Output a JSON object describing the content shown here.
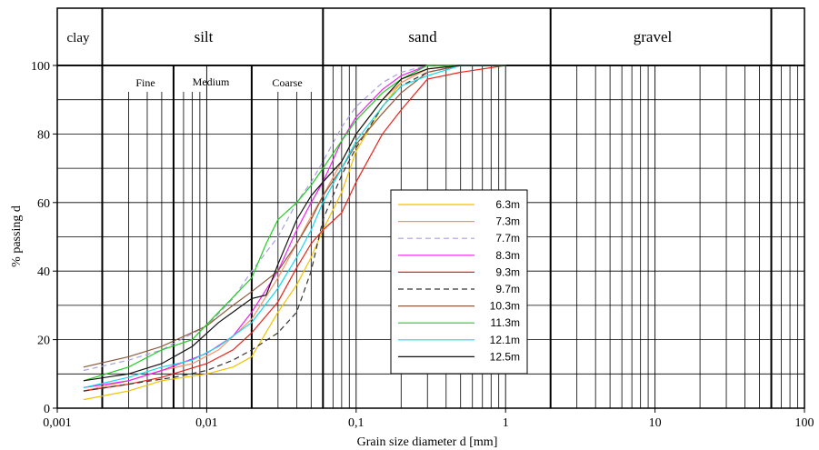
{
  "header": {
    "clay": "clay",
    "silt": "silt",
    "sand": "sand",
    "gravel": "gravel",
    "fine": "Fine",
    "medium": "Medium",
    "coarse": "Coarse"
  },
  "chart_data": {
    "type": "line",
    "title": "",
    "xlabel": "Grain size diameter d [mm]",
    "ylabel": "% passing d",
    "xscale": "log",
    "xlim": [
      0.001,
      100
    ],
    "ylim": [
      0,
      100
    ],
    "x_ticks": [
      "0,001",
      "0,01",
      "0,1",
      "1",
      "10",
      "100"
    ],
    "y_ticks": [
      "0",
      "20",
      "40",
      "60",
      "80",
      "100"
    ],
    "zones": [
      {
        "name": "clay",
        "from": 0.001,
        "to": 0.002
      },
      {
        "name": "silt",
        "from": 0.002,
        "to": 0.06,
        "subzones": [
          {
            "name": "Fine",
            "from": 0.002,
            "to": 0.006
          },
          {
            "name": "Medium",
            "from": 0.006,
            "to": 0.02
          },
          {
            "name": "Coarse",
            "from": 0.02,
            "to": 0.06
          }
        ]
      },
      {
        "name": "sand",
        "from": 0.06,
        "to": 2
      },
      {
        "name": "gravel",
        "from": 2,
        "to": 60
      }
    ],
    "legend_position": "center-right",
    "series": [
      {
        "name": "6.3m",
        "color": "#f2c200",
        "dash": "",
        "x": [
          0.0015,
          0.003,
          0.005,
          0.01,
          0.015,
          0.02,
          0.03,
          0.04,
          0.05,
          0.06,
          0.08,
          0.1,
          0.15,
          0.2,
          0.3,
          0.5,
          1
        ],
        "y": [
          2.5,
          5,
          8,
          10,
          12,
          15,
          28,
          36,
          44,
          52,
          63,
          75,
          88,
          95,
          99,
          100,
          100
        ]
      },
      {
        "name": "7.3m",
        "color": "#f5926c",
        "dash": "",
        "x": [
          0.0015,
          0.003,
          0.005,
          0.008,
          0.012,
          0.02,
          0.03,
          0.04,
          0.05,
          0.06,
          0.08,
          0.1,
          0.15,
          0.2,
          0.3,
          0.5,
          1
        ],
        "y": [
          5,
          8,
          11,
          13,
          17,
          26,
          38,
          48,
          56,
          62,
          72,
          80,
          90,
          95,
          99,
          100,
          100
        ]
      },
      {
        "name": "7.7m",
        "color": "#a8a0e0",
        "dash": "6,4",
        "x": [
          0.0015,
          0.003,
          0.005,
          0.01,
          0.015,
          0.02,
          0.03,
          0.04,
          0.05,
          0.06,
          0.08,
          0.1,
          0.15,
          0.2,
          0.3,
          0.5,
          1
        ],
        "y": [
          11,
          14,
          17,
          24,
          32,
          40,
          50,
          60,
          66,
          72,
          82,
          88,
          95,
          98,
          100,
          100,
          100
        ]
      },
      {
        "name": "8.3m",
        "color": "#ee22ee",
        "dash": "",
        "x": [
          0.0015,
          0.003,
          0.005,
          0.01,
          0.015,
          0.02,
          0.03,
          0.04,
          0.05,
          0.06,
          0.08,
          0.1,
          0.15,
          0.2,
          0.3,
          0.5,
          1
        ],
        "y": [
          6,
          8,
          11,
          16,
          21,
          28,
          40,
          52,
          60,
          66,
          78,
          85,
          93,
          97,
          100,
          100,
          100
        ]
      },
      {
        "name": "9.3m",
        "color": "#e8241c",
        "dash": "",
        "x": [
          0.0015,
          0.003,
          0.005,
          0.01,
          0.015,
          0.02,
          0.03,
          0.04,
          0.05,
          0.06,
          0.08,
          0.1,
          0.15,
          0.2,
          0.3,
          0.5,
          1
        ],
        "y": [
          5,
          7,
          9,
          13,
          17,
          22,
          31,
          41,
          48,
          52,
          57,
          66,
          80,
          87,
          96,
          98,
          100
        ]
      },
      {
        "name": "9.7m",
        "color": "#333333",
        "dash": "6,4",
        "x": [
          0.0015,
          0.003,
          0.006,
          0.01,
          0.015,
          0.02,
          0.03,
          0.04,
          0.05,
          0.06,
          0.08,
          0.1,
          0.15,
          0.2,
          0.3,
          0.5,
          1
        ],
        "y": [
          5,
          7,
          9,
          11,
          14,
          17,
          22,
          28,
          40,
          55,
          68,
          76,
          88,
          94,
          98,
          100,
          100
        ]
      },
      {
        "name": "10.3m",
        "color": "#8b5a3c",
        "dash": "",
        "x": [
          0.0015,
          0.003,
          0.005,
          0.01,
          0.015,
          0.02,
          0.03,
          0.04,
          0.05,
          0.06,
          0.08,
          0.1,
          0.15,
          0.2,
          0.3,
          0.5,
          1
        ],
        "y": [
          12,
          15,
          18,
          24,
          30,
          34,
          40,
          48,
          55,
          62,
          70,
          77,
          86,
          92,
          98,
          100,
          100
        ]
      },
      {
        "name": "11.3m",
        "color": "#22cc22",
        "dash": "",
        "x": [
          0.0015,
          0.003,
          0.005,
          0.008,
          0.012,
          0.02,
          0.025,
          0.03,
          0.04,
          0.05,
          0.06,
          0.08,
          0.1,
          0.15,
          0.2,
          0.3,
          0.5,
          1
        ],
        "y": [
          8,
          12,
          17,
          20,
          28,
          38,
          48,
          55,
          60,
          65,
          70,
          78,
          84,
          92,
          96,
          100,
          100,
          100
        ]
      },
      {
        "name": "12.1m",
        "color": "#18d8ec",
        "dash": "",
        "x": [
          0.0015,
          0.003,
          0.005,
          0.008,
          0.012,
          0.02,
          0.03,
          0.04,
          0.05,
          0.06,
          0.08,
          0.1,
          0.15,
          0.2,
          0.3,
          0.5,
          1
        ],
        "y": [
          6,
          9,
          12,
          14,
          18,
          25,
          35,
          44,
          52,
          60,
          70,
          78,
          88,
          94,
          97,
          100,
          100
        ]
      },
      {
        "name": "12.5m",
        "color": "#111111",
        "dash": "",
        "x": [
          0.0015,
          0.003,
          0.005,
          0.008,
          0.012,
          0.02,
          0.025,
          0.03,
          0.04,
          0.05,
          0.06,
          0.08,
          0.1,
          0.15,
          0.2,
          0.3,
          0.5,
          1
        ],
        "y": [
          8,
          10,
          13,
          18,
          25,
          32,
          33,
          42,
          55,
          62,
          66,
          72,
          80,
          90,
          96,
          99,
          100,
          100
        ]
      }
    ]
  }
}
